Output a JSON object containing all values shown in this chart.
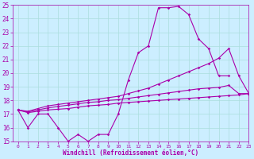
{
  "x_values": [
    0,
    1,
    2,
    3,
    4,
    5,
    6,
    7,
    8,
    9,
    10,
    11,
    12,
    13,
    14,
    15,
    16,
    17,
    18,
    19,
    20,
    21,
    22,
    23
  ],
  "line1": [
    17.3,
    16.0,
    17.0,
    17.0,
    16.0,
    15.0,
    15.5,
    15.0,
    15.5,
    15.5,
    17.0,
    19.5,
    21.5,
    22.0,
    24.8,
    24.8,
    24.9,
    24.3,
    22.5,
    21.8,
    19.8,
    19.8,
    null,
    null
  ],
  "line2": [
    17.3,
    17.2,
    17.4,
    17.6,
    17.7,
    17.8,
    17.9,
    18.0,
    18.1,
    18.2,
    18.3,
    18.5,
    18.7,
    18.9,
    19.2,
    19.5,
    19.8,
    20.1,
    20.4,
    20.7,
    21.1,
    21.8,
    19.8,
    18.5
  ],
  "line3": [
    17.3,
    17.15,
    17.3,
    17.45,
    17.55,
    17.65,
    17.75,
    17.85,
    17.9,
    18.0,
    18.05,
    18.15,
    18.25,
    18.35,
    18.45,
    18.55,
    18.65,
    18.75,
    18.85,
    18.9,
    18.95,
    19.1,
    18.5,
    18.5
  ],
  "line4": [
    17.3,
    17.1,
    17.2,
    17.3,
    17.35,
    17.4,
    17.5,
    17.6,
    17.65,
    17.7,
    17.8,
    17.85,
    17.9,
    17.95,
    18.0,
    18.05,
    18.1,
    18.15,
    18.2,
    18.25,
    18.3,
    18.35,
    18.4,
    18.5
  ],
  "line_color": "#aa00aa",
  "bg_color": "#cceeff",
  "grid_color": "#aadddd",
  "xlabel": "Windchill (Refroidissement éolien,°C)",
  "ylim": [
    15,
    25
  ],
  "xlim": [
    -0.5,
    23
  ],
  "yticks": [
    15,
    16,
    17,
    18,
    19,
    20,
    21,
    22,
    23,
    24,
    25
  ],
  "xticks": [
    0,
    1,
    2,
    3,
    4,
    5,
    6,
    7,
    8,
    9,
    10,
    11,
    12,
    13,
    14,
    15,
    16,
    17,
    18,
    19,
    20,
    21,
    22,
    23
  ],
  "tick_fontsize": 5.5,
  "xlabel_fontsize": 5.5
}
